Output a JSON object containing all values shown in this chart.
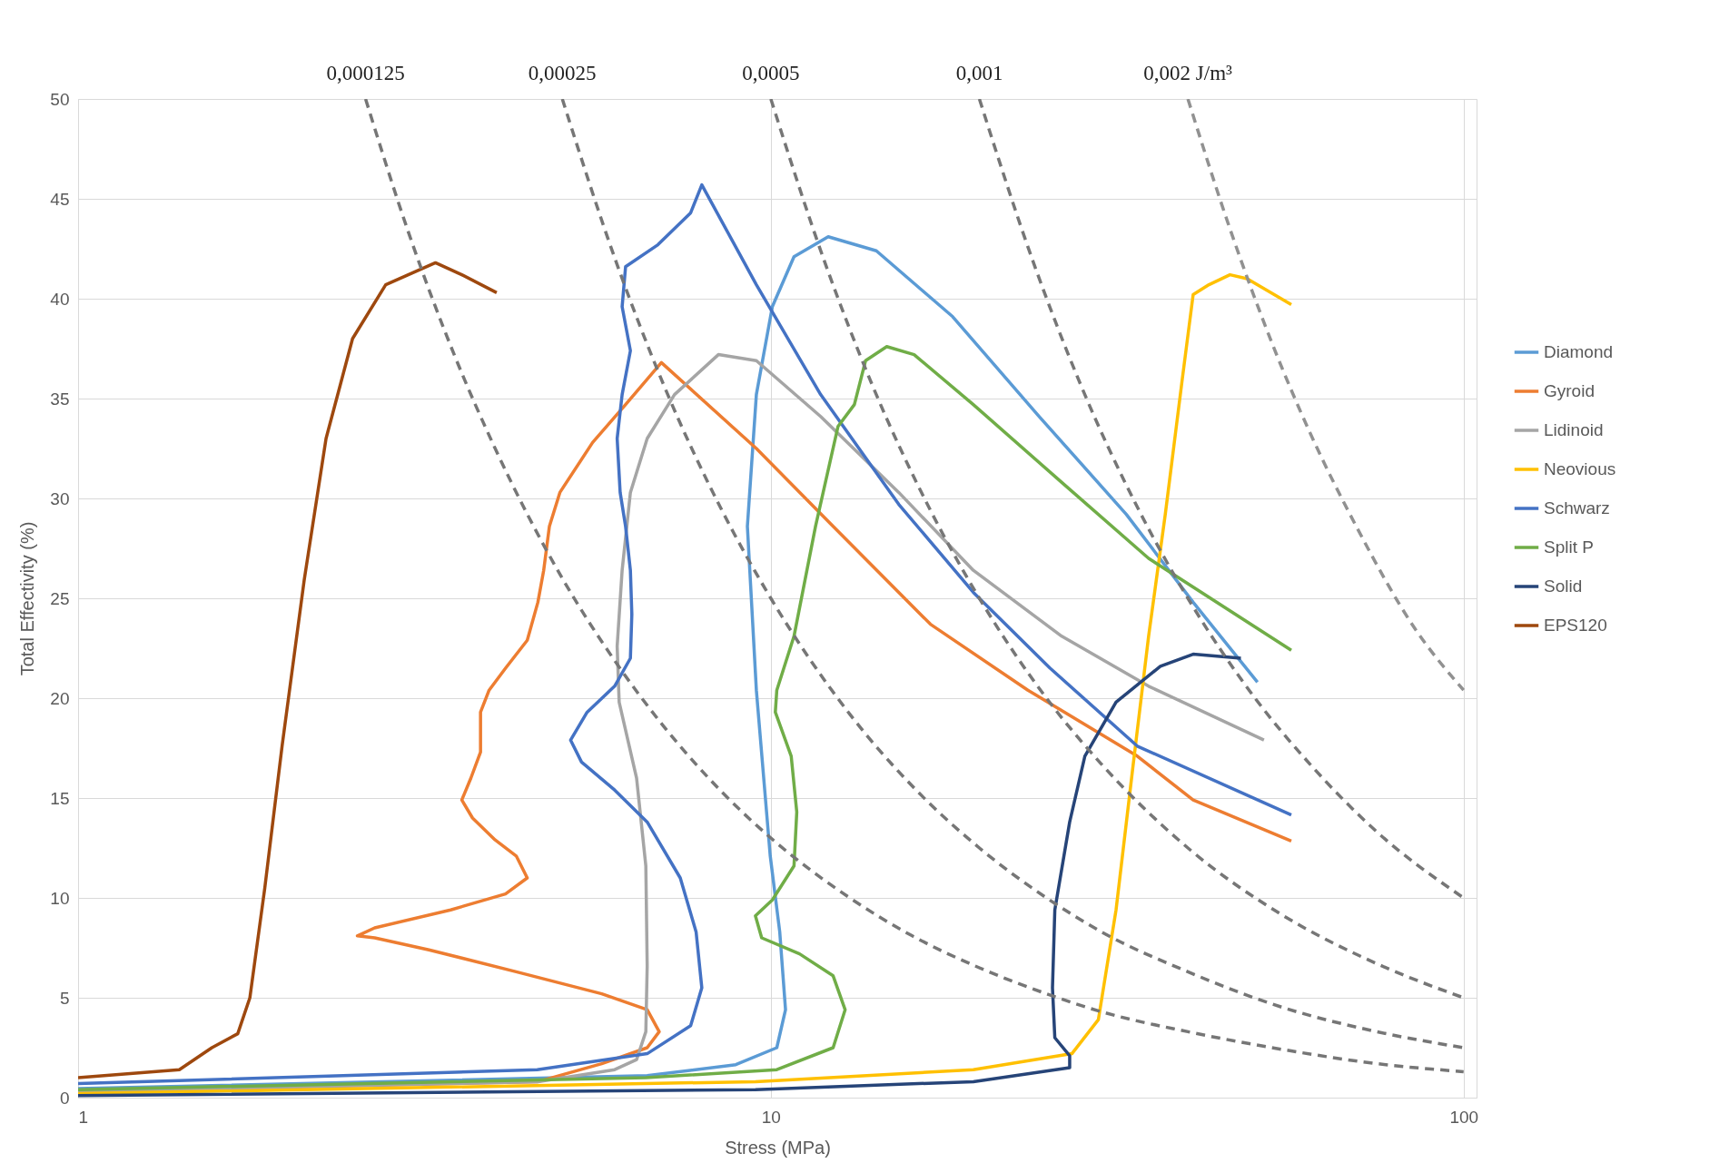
{
  "chart_data": {
    "type": "line",
    "xlabel": "Stress (MPa)",
    "ylabel": "Total Effectivity (%)",
    "log": "x",
    "xlim": [
      1,
      104.4
    ],
    "xticks": [
      1,
      10,
      100
    ],
    "ylim": [
      0,
      50
    ],
    "yticks": [
      0,
      5,
      10,
      15,
      20,
      25,
      30,
      35,
      40,
      45,
      50
    ],
    "grid": true,
    "legend": "right",
    "series": [
      {
        "name": "Diamond",
        "color": "#5b9bd5",
        "line_style": "solid",
        "x": [
          1,
          6.63,
          8.9,
          10.2,
          10.5,
          10.3,
          9.98,
          9.53,
          9.25,
          9.53,
          10.05,
          10.8,
          12.1,
          14.2,
          18.3,
          24.4,
          32.6,
          40.7,
          50.4
        ],
        "values": [
          0.45,
          1.1,
          1.65,
          2.5,
          4.4,
          8.3,
          12.1,
          20.4,
          28.6,
          35.2,
          39.6,
          42.1,
          43.1,
          42.4,
          39.1,
          34.1,
          29.2,
          24.8,
          20.8
        ]
      },
      {
        "name": "Gyroid",
        "color": "#ed7d31",
        "line_style": "solid",
        "x": [
          1,
          4.61,
          5.7,
          6.63,
          6.9,
          6.63,
          5.7,
          4.29,
          3.21,
          2.68,
          2.53,
          2.68,
          3.45,
          4.14,
          4.45,
          4.29,
          4.0,
          3.71,
          3.58,
          3.69,
          3.81,
          3.81,
          3.92,
          4.14,
          4.45,
          4.61,
          4.7,
          4.79,
          4.96,
          5.53,
          6.17,
          6.95,
          9.53,
          12.3,
          17.0,
          23.5,
          33.8,
          40.7,
          56.4
        ],
        "values": [
          0.3,
          0.8,
          1.7,
          2.5,
          3.3,
          4.4,
          5.2,
          6.3,
          7.4,
          8.0,
          8.1,
          8.5,
          9.4,
          10.2,
          11,
          12.1,
          12.9,
          14.0,
          14.9,
          16.0,
          17.3,
          19.3,
          20.4,
          21.5,
          22.9,
          24.8,
          26.4,
          28.6,
          30.3,
          32.8,
          34.7,
          36.8,
          32.5,
          28.6,
          23.7,
          20.4,
          17.1,
          14.9,
          12.85
        ]
      },
      {
        "name": "Lidinoid",
        "color": "#a5a5a5",
        "line_style": "solid",
        "x": [
          1,
          4.61,
          5.95,
          6.4,
          6.6,
          6.63,
          6.6,
          6.4,
          6.04,
          6.0,
          6.1,
          6.27,
          6.63,
          7.26,
          8.4,
          9.53,
          11.8,
          15.3,
          19.6,
          26.3,
          35.1,
          51.5
        ],
        "values": [
          0.3,
          0.8,
          1.4,
          1.9,
          3.3,
          6.6,
          11.6,
          16,
          19.8,
          22.6,
          26.4,
          30.3,
          33,
          35.2,
          37.2,
          36.9,
          34.1,
          30.3,
          26.4,
          23.1,
          20.6,
          17.9
        ]
      },
      {
        "name": "Neovious",
        "color": "#ffc000",
        "line_style": "solid",
        "x": [
          1,
          9.5,
          19.6,
          27.2,
          29.7,
          31.5,
          33.3,
          35.1,
          37.1,
          39.2,
          40.7,
          42.9,
          46.0,
          48.7,
          56.4
        ],
        "values": [
          0.2,
          0.8,
          1.4,
          2.2,
          3.9,
          9.4,
          16.5,
          23.1,
          29.2,
          35.8,
          40.2,
          40.7,
          41.2,
          41.0,
          39.7
        ]
      },
      {
        "name": "Schwarz",
        "color": "#4472c4",
        "line_style": "solid",
        "x": [
          1,
          4.6,
          6.63,
          7.66,
          7.95,
          7.8,
          7.4,
          6.63,
          5.95,
          5.33,
          5.14,
          5.43,
          5.95,
          6.27,
          6.3,
          6.27,
          6.17,
          6.06,
          6.0,
          6.1,
          6.27,
          6.1,
          6.17,
          6.87,
          7.66,
          7.95,
          9.53,
          11.8,
          15.3,
          19.6,
          25.3,
          33.8,
          56.4
        ],
        "values": [
          0.7,
          1.4,
          2.2,
          3.6,
          5.5,
          8.3,
          11,
          13.8,
          15.4,
          16.8,
          17.9,
          19.3,
          20.6,
          22.0,
          24.2,
          26.4,
          28.6,
          30.3,
          33,
          35.2,
          37.4,
          39.6,
          41.6,
          42.7,
          44.3,
          45.7,
          40.7,
          35.2,
          29.7,
          25.3,
          21.5,
          17.6,
          14.15
        ]
      },
      {
        "name": "Split P",
        "color": "#70ad47",
        "line_style": "solid",
        "x": [
          1,
          6.6,
          10.2,
          12.3,
          12.8,
          12.3,
          11.0,
          9.7,
          9.5,
          10.05,
          10.8,
          10.9,
          10.7,
          10.15,
          10.2,
          10.8,
          11.6,
          12.5,
          13.2,
          13.7,
          14.7,
          16.1,
          19.6,
          26.3,
          35.1,
          56.4
        ],
        "values": [
          0.4,
          1.0,
          1.4,
          2.5,
          4.4,
          6.1,
          7.2,
          8.0,
          9.1,
          9.9,
          11.6,
          14.3,
          17.1,
          19.3,
          20.4,
          23.1,
          28.6,
          33.6,
          34.7,
          36.9,
          37.6,
          37.2,
          34.7,
          30.8,
          27.0,
          22.4
        ]
      },
      {
        "name": "Solid",
        "color": "#264478",
        "line_style": "solid",
        "x": [
          1,
          9.5,
          19.6,
          27.0,
          27.0,
          25.7,
          25.5,
          25.7,
          27.0,
          28.4,
          31.5,
          36.5,
          40.7,
          47.7
        ],
        "values": [
          0.1,
          0.4,
          0.8,
          1.5,
          2.1,
          3.0,
          5.5,
          9.4,
          13.8,
          17.1,
          19.8,
          21.6,
          22.2,
          22.0
        ]
      },
      {
        "name": "EPS120",
        "color": "#9e480e",
        "line_style": "solid",
        "x": [
          1,
          1.4,
          1.56,
          1.7,
          1.77,
          1.86,
          1.97,
          2.12,
          2.28,
          2.49,
          2.78,
          3.28,
          3.58,
          4.02
        ],
        "values": [
          1.0,
          1.4,
          2.5,
          3.2,
          5,
          10.5,
          17.6,
          25.9,
          33,
          38,
          40.7,
          41.8,
          41.2,
          40.3
        ]
      },
      {
        "name": "0,000125",
        "color": "#767676",
        "line_style": "dashed",
        "x": [
          2.6,
          3,
          3.5,
          4,
          5,
          6,
          7,
          8.5,
          10,
          13,
          16,
          20,
          25,
          30,
          40,
          55,
          75,
          100
        ],
        "values": [
          50,
          43.3,
          37.1,
          32.5,
          26,
          21.7,
          18.6,
          15.3,
          13,
          10,
          8.1,
          6.5,
          5.2,
          4.3,
          3.3,
          2.4,
          1.7,
          1.3
        ]
      },
      {
        "name": "0,00025",
        "color": "#767676",
        "line_style": "dashed",
        "x": [
          5,
          6,
          7,
          8.5,
          10,
          13,
          16,
          20,
          25,
          30,
          40,
          55,
          75,
          100
        ],
        "values": [
          50,
          41.7,
          35.7,
          29.4,
          25,
          19.2,
          15.6,
          12.5,
          10,
          8.3,
          6.3,
          4.5,
          3.3,
          2.5
        ]
      },
      {
        "name": "0,0005",
        "color": "#767676",
        "line_style": "dashed",
        "x": [
          10,
          12,
          14,
          17,
          20,
          25,
          30,
          40,
          55,
          75,
          100
        ],
        "values": [
          50,
          41.7,
          35.7,
          29.4,
          25,
          20,
          16.7,
          12.5,
          9.1,
          6.7,
          5
        ]
      },
      {
        "name": "0,001",
        "color": "#767676",
        "line_style": "dashed",
        "x": [
          20,
          24,
          28,
          34,
          40,
          50,
          60,
          75,
          100
        ],
        "values": [
          50,
          41.7,
          35.7,
          29.4,
          25,
          20,
          16.7,
          13.3,
          10
        ]
      },
      {
        "name": "0,002 J/m³",
        "color": "#919191",
        "line_style": "dashed",
        "x": [
          40,
          46,
          53,
          60,
          70,
          85,
          100
        ],
        "values": [
          50,
          43.5,
          37.7,
          33.3,
          28.6,
          23.5,
          20.4
        ]
      }
    ]
  }
}
